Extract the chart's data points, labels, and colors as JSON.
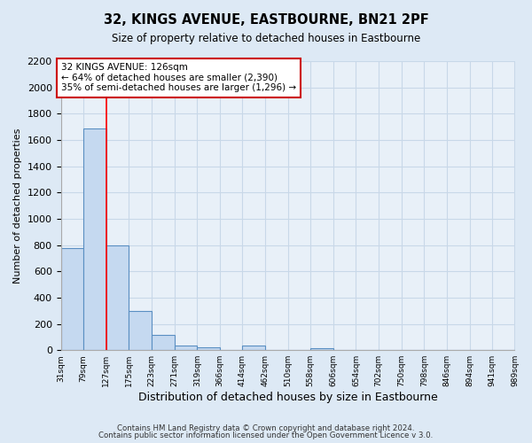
{
  "title": "32, KINGS AVENUE, EASTBOURNE, BN21 2PF",
  "subtitle": "Size of property relative to detached houses in Eastbourne",
  "xlabel": "Distribution of detached houses by size in Eastbourne",
  "ylabel": "Number of detached properties",
  "footer_line1": "Contains HM Land Registry data © Crown copyright and database right 2024.",
  "footer_line2": "Contains public sector information licensed under the Open Government Licence v 3.0.",
  "bin_edges": [
    31,
    79,
    127,
    175,
    223,
    271,
    319,
    366,
    414,
    462,
    510,
    558,
    606,
    654,
    702,
    750,
    798,
    846,
    894,
    941,
    989
  ],
  "bin_labels": [
    "31sqm",
    "79sqm",
    "127sqm",
    "175sqm",
    "223sqm",
    "271sqm",
    "319sqm",
    "366sqm",
    "414sqm",
    "462sqm",
    "510sqm",
    "558sqm",
    "606sqm",
    "654sqm",
    "702sqm",
    "750sqm",
    "798sqm",
    "846sqm",
    "894sqm",
    "941sqm",
    "989sqm"
  ],
  "bar_heights": [
    780,
    1690,
    800,
    300,
    115,
    35,
    25,
    0,
    35,
    0,
    0,
    15,
    0,
    0,
    0,
    0,
    0,
    0,
    0,
    0
  ],
  "bar_color": "#c5d9f0",
  "bar_edge_color": "#5a8fc2",
  "red_line_x": 127,
  "annotation_title": "32 KINGS AVENUE: 126sqm",
  "annotation_line1": "← 64% of detached houses are smaller (2,390)",
  "annotation_line2": "35% of semi-detached houses are larger (1,296) →",
  "annotation_box_color": "#ffffff",
  "annotation_box_edge_color": "#cc0000",
  "ylim": [
    0,
    2200
  ],
  "yticks": [
    0,
    200,
    400,
    600,
    800,
    1000,
    1200,
    1400,
    1600,
    1800,
    2000,
    2200
  ],
  "grid_color": "#c8d8e8",
  "ax_bg_color": "#e8f0f8",
  "fig_bg_color": "#dde9f5"
}
